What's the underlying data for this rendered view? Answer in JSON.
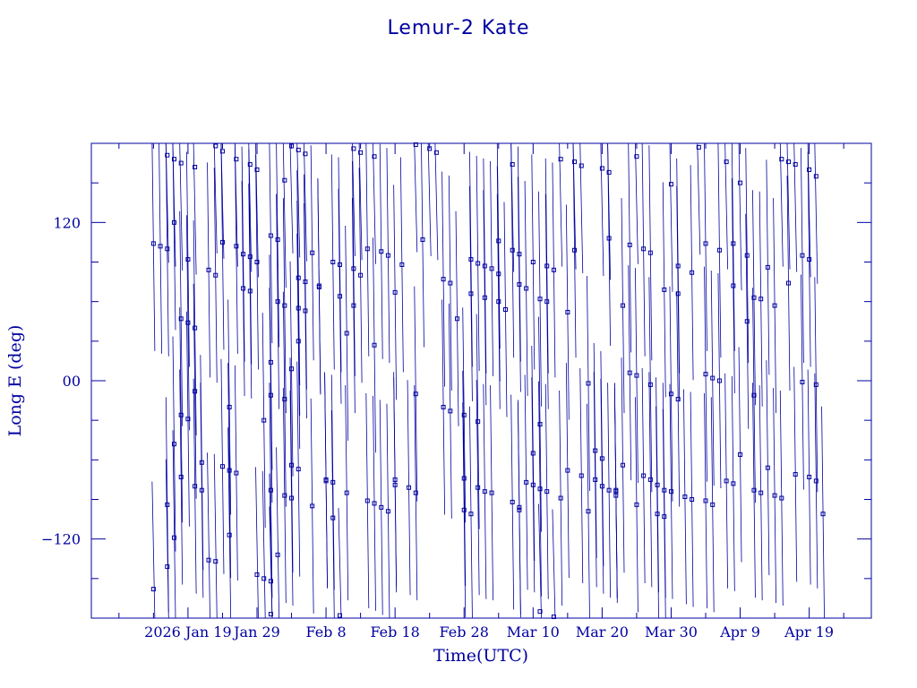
{
  "chart_data": {
    "type": "scatter",
    "title": "Lemur-2 Kate",
    "xlabel": "Time(UTC)",
    "ylabel": "Long E (deg)",
    "xlim": [
      "2026-01-05",
      "2026-04-28"
    ],
    "ylim": [
      -180,
      180
    ],
    "x_tick_labels": [
      "2026 Jan 19",
      "Jan 29",
      "Feb 8",
      "Feb 18",
      "Feb 28",
      "Mar 10",
      "Mar 20",
      "Mar 30",
      "Apr 9",
      "Apr 19"
    ],
    "x_tick_dates": [
      "2026-01-19",
      "2026-01-29",
      "2026-02-08",
      "2026-02-18",
      "2026-02-28",
      "2026-03-10",
      "2026-03-20",
      "2026-03-30",
      "2026-04-09",
      "2026-04-19"
    ],
    "y_tick_labels": [
      "120",
      "00",
      "−120"
    ],
    "y_tick_values": [
      120,
      0,
      -120
    ],
    "grid": false,
    "color": "#0000a0",
    "series": [
      {
        "marker": "square",
        "points": [
          [
            "2026-01-14",
            -158
          ],
          [
            "2026-01-14",
            104
          ],
          [
            "2026-01-15",
            102
          ],
          [
            "2026-01-16",
            -94
          ],
          [
            "2026-01-16",
            -141
          ],
          [
            "2026-01-16",
            100
          ],
          [
            "2026-01-16",
            171
          ],
          [
            "2026-01-17",
            -48
          ],
          [
            "2026-01-17",
            -119
          ],
          [
            "2026-01-17",
            120
          ],
          [
            "2026-01-17",
            168
          ],
          [
            "2026-01-18",
            47
          ],
          [
            "2026-01-18",
            -26
          ],
          [
            "2026-01-18",
            -73
          ],
          [
            "2026-01-18",
            165
          ],
          [
            "2026-01-19",
            92
          ],
          [
            "2026-01-19",
            44
          ],
          [
            "2026-01-19",
            -29
          ],
          [
            "2026-01-20",
            162
          ],
          [
            "2026-01-20",
            40
          ],
          [
            "2026-01-20",
            -8
          ],
          [
            "2026-01-20",
            -80
          ],
          [
            "2026-01-21",
            -62
          ],
          [
            "2026-01-21",
            -83
          ],
          [
            "2026-01-22",
            84
          ],
          [
            "2026-01-22",
            -136
          ],
          [
            "2026-01-23",
            178
          ],
          [
            "2026-01-23",
            80
          ],
          [
            "2026-01-23",
            -137
          ],
          [
            "2026-01-24",
            174
          ],
          [
            "2026-01-24",
            105
          ],
          [
            "2026-01-24",
            -65
          ],
          [
            "2026-01-25",
            -20
          ],
          [
            "2026-01-25",
            -117
          ],
          [
            "2026-01-25",
            -68
          ],
          [
            "2026-01-26",
            102
          ],
          [
            "2026-01-26",
            -70
          ],
          [
            "2026-01-26",
            168
          ],
          [
            "2026-01-27",
            70
          ],
          [
            "2026-01-27",
            96
          ],
          [
            "2026-01-28",
            164
          ],
          [
            "2026-01-28",
            68
          ],
          [
            "2026-01-28",
            94
          ],
          [
            "2026-01-29",
            -147
          ],
          [
            "2026-01-29",
            160
          ],
          [
            "2026-01-29",
            90
          ],
          [
            "2026-01-30",
            -150
          ],
          [
            "2026-01-30",
            -30
          ],
          [
            "2026-01-31",
            -152
          ],
          [
            "2026-01-31",
            -177
          ],
          [
            "2026-01-31",
            110
          ],
          [
            "2026-01-31",
            14
          ],
          [
            "2026-01-31",
            -11
          ],
          [
            "2026-01-31",
            -83
          ],
          [
            "2026-02-01",
            107
          ],
          [
            "2026-02-01",
            -132
          ],
          [
            "2026-02-01",
            60
          ],
          [
            "2026-02-02",
            -14
          ],
          [
            "2026-02-02",
            -87
          ],
          [
            "2026-02-02",
            57
          ],
          [
            "2026-02-02",
            152
          ],
          [
            "2026-02-03",
            178
          ],
          [
            "2026-02-03",
            9
          ],
          [
            "2026-02-03",
            -64
          ],
          [
            "2026-02-03",
            -89
          ],
          [
            "2026-02-04",
            55
          ],
          [
            "2026-02-04",
            30
          ],
          [
            "2026-02-04",
            175
          ],
          [
            "2026-02-04",
            78
          ],
          [
            "2026-02-04",
            -67
          ],
          [
            "2026-02-05",
            53
          ],
          [
            "2026-02-05",
            172
          ],
          [
            "2026-02-05",
            75
          ],
          [
            "2026-02-06",
            -95
          ],
          [
            "2026-02-06",
            97
          ],
          [
            "2026-02-07",
            72
          ],
          [
            "2026-02-07",
            71
          ],
          [
            "2026-02-08",
            -76
          ],
          [
            "2026-02-08",
            -75
          ],
          [
            "2026-02-09",
            90
          ],
          [
            "2026-02-09",
            -77
          ],
          [
            "2026-02-09",
            -104
          ],
          [
            "2026-02-10",
            88
          ],
          [
            "2026-02-10",
            64
          ],
          [
            "2026-02-10",
            -178
          ],
          [
            "2026-02-11",
            36
          ],
          [
            "2026-02-11",
            -85
          ],
          [
            "2026-02-12",
            85
          ],
          [
            "2026-02-12",
            176
          ],
          [
            "2026-02-12",
            57
          ],
          [
            "2026-02-13",
            173
          ],
          [
            "2026-02-13",
            80
          ],
          [
            "2026-02-14",
            -91
          ],
          [
            "2026-02-14",
            100
          ],
          [
            "2026-02-15",
            27
          ],
          [
            "2026-02-15",
            170
          ],
          [
            "2026-02-15",
            -93
          ],
          [
            "2026-02-16",
            98
          ],
          [
            "2026-02-16",
            -96
          ],
          [
            "2026-02-17",
            95
          ],
          [
            "2026-02-17",
            -99
          ],
          [
            "2026-02-18",
            -75
          ],
          [
            "2026-02-18",
            67
          ],
          [
            "2026-02-18",
            -79
          ],
          [
            "2026-02-19",
            88
          ],
          [
            "2026-02-20",
            -81
          ],
          [
            "2026-02-21",
            -85
          ],
          [
            "2026-02-21",
            -10
          ],
          [
            "2026-02-21",
            179
          ],
          [
            "2026-02-22",
            107
          ],
          [
            "2026-02-23",
            176
          ],
          [
            "2026-02-24",
            173
          ],
          [
            "2026-02-25",
            77
          ],
          [
            "2026-02-25",
            -20
          ],
          [
            "2026-02-26",
            74
          ],
          [
            "2026-02-26",
            -23
          ],
          [
            "2026-02-27",
            47
          ],
          [
            "2026-02-28",
            -26
          ],
          [
            "2026-02-28",
            -98
          ],
          [
            "2026-02-28",
            -74
          ],
          [
            "2026-03-01",
            66
          ],
          [
            "2026-03-01",
            92
          ],
          [
            "2026-03-01",
            -101
          ],
          [
            "2026-03-02",
            -31
          ],
          [
            "2026-03-02",
            -81
          ],
          [
            "2026-03-02",
            89
          ],
          [
            "2026-03-03",
            -84
          ],
          [
            "2026-03-03",
            87
          ],
          [
            "2026-03-03",
            63
          ],
          [
            "2026-03-04",
            -85
          ],
          [
            "2026-03-04",
            85
          ],
          [
            "2026-03-05",
            60
          ],
          [
            "2026-03-05",
            106
          ],
          [
            "2026-03-05",
            81
          ],
          [
            "2026-03-06",
            54
          ],
          [
            "2026-03-07",
            -92
          ],
          [
            "2026-03-07",
            164
          ],
          [
            "2026-03-07",
            99
          ],
          [
            "2026-03-08",
            96
          ],
          [
            "2026-03-08",
            -96
          ],
          [
            "2026-03-08",
            -98
          ],
          [
            "2026-03-08",
            73
          ],
          [
            "2026-03-09",
            70
          ],
          [
            "2026-03-09",
            -77
          ],
          [
            "2026-03-10",
            90
          ],
          [
            "2026-03-10",
            -55
          ],
          [
            "2026-03-10",
            -79
          ],
          [
            "2026-03-11",
            -175
          ],
          [
            "2026-03-11",
            62
          ],
          [
            "2026-03-11",
            -33
          ],
          [
            "2026-03-11",
            -82
          ],
          [
            "2026-03-12",
            60
          ],
          [
            "2026-03-12",
            -84
          ],
          [
            "2026-03-12",
            87
          ],
          [
            "2026-03-13",
            84
          ],
          [
            "2026-03-13",
            -179
          ],
          [
            "2026-03-14",
            168
          ],
          [
            "2026-03-14",
            -89
          ],
          [
            "2026-03-15",
            52
          ],
          [
            "2026-03-15",
            -68
          ],
          [
            "2026-03-16",
            166
          ],
          [
            "2026-03-16",
            99
          ],
          [
            "2026-03-17",
            -72
          ],
          [
            "2026-03-17",
            163
          ],
          [
            "2026-03-18",
            -2
          ],
          [
            "2026-03-18",
            -99
          ],
          [
            "2026-03-19",
            -53
          ],
          [
            "2026-03-19",
            -75
          ],
          [
            "2026-03-20",
            161
          ],
          [
            "2026-03-20",
            -80
          ],
          [
            "2026-03-20",
            -59
          ],
          [
            "2026-03-21",
            -83
          ],
          [
            "2026-03-21",
            158
          ],
          [
            "2026-03-21",
            108
          ],
          [
            "2026-03-22",
            -83
          ],
          [
            "2026-03-22",
            -87
          ],
          [
            "2026-03-22",
            -84
          ],
          [
            "2026-03-23",
            57
          ],
          [
            "2026-03-23",
            -64
          ],
          [
            "2026-03-24",
            6
          ],
          [
            "2026-03-24",
            103
          ],
          [
            "2026-03-25",
            170
          ],
          [
            "2026-03-25",
            4
          ],
          [
            "2026-03-25",
            -94
          ],
          [
            "2026-03-26",
            100
          ],
          [
            "2026-03-26",
            -72
          ],
          [
            "2026-03-27",
            97
          ],
          [
            "2026-03-27",
            -3
          ],
          [
            "2026-03-27",
            -75
          ],
          [
            "2026-03-28",
            -101
          ],
          [
            "2026-03-28",
            -79
          ],
          [
            "2026-03-29",
            69
          ],
          [
            "2026-03-29",
            -103
          ],
          [
            "2026-03-29",
            -83
          ],
          [
            "2026-03-30",
            149
          ],
          [
            "2026-03-30",
            -10
          ],
          [
            "2026-03-30",
            -84
          ],
          [
            "2026-03-31",
            66
          ],
          [
            "2026-03-31",
            87
          ],
          [
            "2026-03-31",
            -14
          ],
          [
            "2026-04-01",
            -88
          ],
          [
            "2026-04-02",
            82
          ],
          [
            "2026-04-02",
            -90
          ],
          [
            "2026-04-03",
            177
          ],
          [
            "2026-04-04",
            5
          ],
          [
            "2026-04-04",
            104
          ],
          [
            "2026-04-04",
            -91
          ],
          [
            "2026-04-05",
            2
          ],
          [
            "2026-04-05",
            -94
          ],
          [
            "2026-04-06",
            99
          ],
          [
            "2026-04-06",
            0
          ],
          [
            "2026-04-07",
            -76
          ],
          [
            "2026-04-07",
            166
          ],
          [
            "2026-04-08",
            72
          ],
          [
            "2026-04-08",
            104
          ],
          [
            "2026-04-08",
            -78
          ],
          [
            "2026-04-09",
            -56
          ],
          [
            "2026-04-09",
            150
          ],
          [
            "2026-04-10",
            45
          ],
          [
            "2026-04-10",
            95
          ],
          [
            "2026-04-11",
            63
          ],
          [
            "2026-04-11",
            -11
          ],
          [
            "2026-04-11",
            -83
          ],
          [
            "2026-04-12",
            62
          ],
          [
            "2026-04-12",
            -85
          ],
          [
            "2026-04-13",
            86
          ],
          [
            "2026-04-13",
            -66
          ],
          [
            "2026-04-14",
            57
          ],
          [
            "2026-04-14",
            -87
          ],
          [
            "2026-04-15",
            168
          ],
          [
            "2026-04-15",
            -89
          ],
          [
            "2026-04-16",
            166
          ],
          [
            "2026-04-16",
            74
          ],
          [
            "2026-04-17",
            164
          ],
          [
            "2026-04-17",
            -71
          ],
          [
            "2026-04-18",
            95
          ],
          [
            "2026-04-18",
            -1
          ],
          [
            "2026-04-19",
            160
          ],
          [
            "2026-04-19",
            92
          ],
          [
            "2026-04-19",
            -73
          ],
          [
            "2026-04-20",
            -3
          ],
          [
            "2026-04-20",
            -76
          ],
          [
            "2026-04-20",
            155
          ],
          [
            "2026-04-21",
            -101
          ]
        ]
      }
    ]
  }
}
